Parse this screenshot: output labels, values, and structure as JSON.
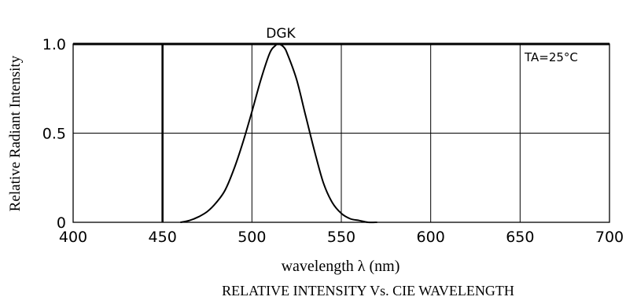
{
  "chart_data": {
    "type": "line",
    "series": [
      {
        "name": "DGK",
        "x": [
          460,
          465,
          470,
          475,
          480,
          485,
          490,
          495,
          500,
          505,
          510,
          513,
          515,
          518,
          520,
          525,
          530,
          535,
          540,
          545,
          550,
          555,
          560,
          565,
          570
        ],
        "y": [
          0.0,
          0.01,
          0.03,
          0.06,
          0.11,
          0.18,
          0.3,
          0.45,
          0.62,
          0.8,
          0.95,
          0.99,
          1.0,
          0.98,
          0.94,
          0.8,
          0.6,
          0.4,
          0.22,
          0.11,
          0.05,
          0.02,
          0.01,
          0.0,
          0.0
        ]
      }
    ],
    "title": "RELATIVE INTENSITY Vs. CIE WAVELENGTH",
    "xlabel": "wavelength λ (nm)",
    "ylabel": "Relative Radiant Intensity",
    "xlim": [
      400,
      700
    ],
    "ylim": [
      0,
      1.0
    ],
    "xticks": [
      "400",
      "450",
      "500",
      "550",
      "600",
      "650",
      "700"
    ],
    "yticks": [
      "0",
      "0.5",
      "1.0"
    ],
    "reference_line_x": 450,
    "annotation": "TA=25°C",
    "grid": true
  }
}
